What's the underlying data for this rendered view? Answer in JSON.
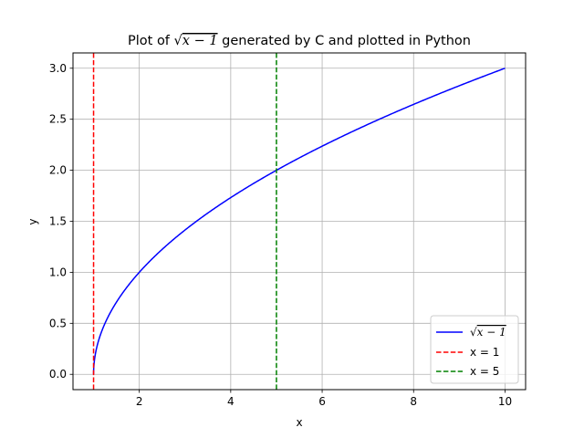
{
  "chart_data": {
    "type": "line",
    "title_prefix": "Plot of ",
    "title_math": "x − 1",
    "title_suffix": " generated by C and plotted in Python",
    "xlabel": "x",
    "ylabel": "y",
    "xlim": [
      0.55,
      10.45
    ],
    "ylim": [
      -0.15,
      3.15
    ],
    "xticks": [
      2,
      4,
      6,
      8,
      10
    ],
    "yticks": [
      0.0,
      0.5,
      1.0,
      1.5,
      2.0,
      2.5,
      3.0
    ],
    "xtick_labels": [
      "2",
      "4",
      "6",
      "8",
      "10"
    ],
    "ytick_labels": [
      "0.0",
      "0.5",
      "1.0",
      "1.5",
      "2.0",
      "2.5",
      "3.0"
    ],
    "grid": true,
    "legend_position": "lower-right",
    "series": [
      {
        "name": "x − 1",
        "function": "sqrt(x-1)",
        "x_range": [
          1,
          10
        ],
        "color": "#0000ff",
        "style": "solid"
      }
    ],
    "vlines": [
      {
        "x": 1,
        "label": "x = 1",
        "color": "#ff0000",
        "style": "dashed"
      },
      {
        "x": 5,
        "label": "x = 5",
        "color": "#008000",
        "style": "dashed"
      }
    ]
  }
}
